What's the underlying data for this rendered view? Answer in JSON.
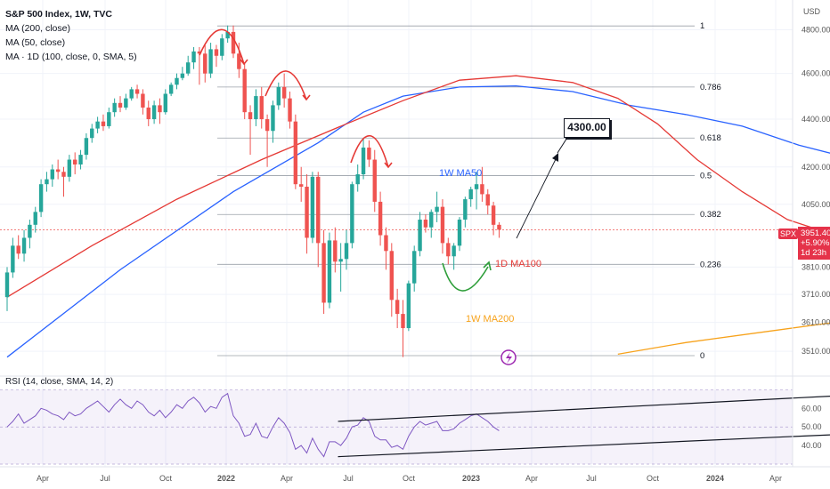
{
  "title": "S&P 500 Index, 1W, TVC",
  "indicators": [
    "MA (200, close)",
    "MA (50, close)",
    "MA · 1D (100, close, 0, SMA, 5)"
  ],
  "rsi_label": "RSI (14, close, SMA, 14, 2)",
  "currency": "USD",
  "symbol_tag": "SPX",
  "last_price": "3951.40",
  "price_change": "+5.90%",
  "countdown": "1d 23h",
  "target_label": "4300.00",
  "colors": {
    "up": "#26a69a",
    "down": "#ef5350",
    "ma50": "#2962ff",
    "ma200": "#f7a21b",
    "ma100d": "#e53935",
    "arrows_red": "#e53935",
    "arrow_green": "#2e9e3a",
    "rsi_line": "#7e57c2"
  },
  "chart_data": {
    "type": "candlestick",
    "y_axis": {
      "unit": "USD",
      "ticks": [
        3510,
        3610,
        3710,
        3810,
        4050,
        4200,
        4400,
        4600,
        4800
      ],
      "tick_labels": [
        "3510.00",
        "3610.00",
        "3710.00",
        "3810.00",
        "4050.00",
        "4200.00",
        "4400.00",
        "4600.00",
        "4800.00"
      ],
      "range": [
        3450,
        4920
      ]
    },
    "x_axis": {
      "tick_labels": [
        "Apr",
        "Jul",
        "Oct",
        "2022",
        "Apr",
        "Jul",
        "Oct",
        "2023",
        "Apr",
        "Jul",
        "Oct",
        "2024",
        "Apr"
      ]
    },
    "fibonacci": [
      {
        "level": "1",
        "price": 4818
      },
      {
        "level": "0.786",
        "price": 4540
      },
      {
        "level": "0.618",
        "price": 4320
      },
      {
        "level": "0.5",
        "price": 4165
      },
      {
        "level": "0.382",
        "price": 4010
      },
      {
        "level": "0.236",
        "price": 3820
      },
      {
        "level": "0",
        "price": 3495
      }
    ],
    "annotations": [
      "1W MA50",
      "1D MA100",
      "1W MA200"
    ],
    "candles": [
      [
        3700,
        3790,
        3650,
        3810
      ],
      [
        3790,
        3890,
        3770,
        3920
      ],
      [
        3890,
        3860,
        3840,
        3930
      ],
      [
        3860,
        3920,
        3830,
        3950
      ],
      [
        3920,
        3970,
        3880,
        3990
      ],
      [
        3970,
        4020,
        3940,
        4040
      ],
      [
        4020,
        4130,
        4000,
        4150
      ],
      [
        4130,
        4150,
        4100,
        4180
      ],
      [
        4150,
        4190,
        4120,
        4210
      ],
      [
        4190,
        4180,
        4150,
        4230
      ],
      [
        4180,
        4160,
        4080,
        4200
      ],
      [
        4160,
        4230,
        4140,
        4250
      ],
      [
        4230,
        4210,
        4170,
        4260
      ],
      [
        4210,
        4250,
        4190,
        4270
      ],
      [
        4250,
        4320,
        4230,
        4340
      ],
      [
        4320,
        4360,
        4300,
        4380
      ],
      [
        4360,
        4390,
        4340,
        4410
      ],
      [
        4390,
        4370,
        4350,
        4420
      ],
      [
        4370,
        4430,
        4360,
        4450
      ],
      [
        4430,
        4470,
        4410,
        4490
      ],
      [
        4470,
        4450,
        4430,
        4500
      ],
      [
        4450,
        4490,
        4440,
        4510
      ],
      [
        4490,
        4530,
        4480,
        4540
      ],
      [
        4530,
        4510,
        4490,
        4550
      ],
      [
        4510,
        4450,
        4420,
        4530
      ],
      [
        4450,
        4400,
        4370,
        4480
      ],
      [
        4400,
        4460,
        4380,
        4480
      ],
      [
        4460,
        4430,
        4380,
        4490
      ],
      [
        4430,
        4510,
        4420,
        4530
      ],
      [
        4510,
        4550,
        4500,
        4560
      ],
      [
        4550,
        4580,
        4530,
        4600
      ],
      [
        4580,
        4600,
        4570,
        4630
      ],
      [
        4600,
        4650,
        4590,
        4680
      ],
      [
        4650,
        4700,
        4620,
        4720
      ],
      [
        4700,
        4690,
        4550,
        4720
      ],
      [
        4690,
        4600,
        4560,
        4730
      ],
      [
        4600,
        4710,
        4580,
        4740
      ],
      [
        4710,
        4680,
        4630,
        4730
      ],
      [
        4680,
        4760,
        4660,
        4780
      ],
      [
        4760,
        4790,
        4740,
        4820
      ],
      [
        4790,
        4690,
        4670,
        4820
      ],
      [
        4690,
        4620,
        4580,
        4740
      ],
      [
        4620,
        4430,
        4400,
        4650
      ],
      [
        4430,
        4400,
        4250,
        4460
      ],
      [
        4400,
        4500,
        4370,
        4530
      ],
      [
        4500,
        4400,
        4360,
        4540
      ],
      [
        4400,
        4350,
        4200,
        4420
      ],
      [
        4350,
        4460,
        4300,
        4480
      ],
      [
        4460,
        4540,
        4440,
        4560
      ],
      [
        4540,
        4490,
        4450,
        4600
      ],
      [
        4490,
        4390,
        4360,
        4520
      ],
      [
        4390,
        4130,
        4110,
        4420
      ],
      [
        4130,
        4120,
        4060,
        4200
      ],
      [
        4120,
        3920,
        3860,
        4170
      ],
      [
        3920,
        4160,
        3900,
        4180
      ],
      [
        4160,
        3900,
        3810,
        4180
      ],
      [
        3900,
        3680,
        3640,
        3950
      ],
      [
        3680,
        3910,
        3660,
        3940
      ],
      [
        3910,
        3830,
        3790,
        3960
      ],
      [
        3830,
        3840,
        3720,
        3900
      ],
      [
        3840,
        3900,
        3800,
        3950
      ],
      [
        3900,
        4130,
        3880,
        4140
      ],
      [
        4130,
        4170,
        4100,
        4210
      ],
      [
        4170,
        4280,
        4150,
        4320
      ],
      [
        4280,
        4230,
        4200,
        4310
      ],
      [
        4230,
        4060,
        4020,
        4270
      ],
      [
        4060,
        3930,
        3890,
        4100
      ],
      [
        3930,
        3870,
        3800,
        3960
      ],
      [
        3870,
        3690,
        3630,
        3900
      ],
      [
        3690,
        3640,
        3590,
        3730
      ],
      [
        3640,
        3590,
        3490,
        3690
      ],
      [
        3590,
        3750,
        3580,
        3760
      ],
      [
        3750,
        3870,
        3720,
        3890
      ],
      [
        3870,
        3990,
        3850,
        4020
      ],
      [
        3990,
        3960,
        3940,
        4010
      ],
      [
        3960,
        4020,
        3920,
        4030
      ],
      [
        4020,
        4040,
        3980,
        4100
      ],
      [
        4040,
        3900,
        3860,
        4070
      ],
      [
        3900,
        3850,
        3820,
        3920
      ],
      [
        3850,
        3890,
        3800,
        3900
      ],
      [
        3890,
        3990,
        3870,
        4000
      ],
      [
        3990,
        4070,
        3960,
        4080
      ],
      [
        4070,
        4110,
        4040,
        4120
      ],
      [
        4110,
        4130,
        4030,
        4180
      ],
      [
        4130,
        4090,
        4060,
        4200
      ],
      [
        4090,
        4045,
        4010,
        4110
      ],
      [
        4045,
        3970,
        3930,
        4060
      ],
      [
        3970,
        3951,
        3920,
        3980
      ]
    ],
    "ma50_1w": [
      [
        0,
        3490
      ],
      [
        20,
        3800
      ],
      [
        40,
        4100
      ],
      [
        55,
        4300
      ],
      [
        63,
        4430
      ],
      [
        70,
        4500
      ],
      [
        80,
        4540
      ],
      [
        90,
        4545
      ],
      [
        100,
        4520
      ],
      [
        110,
        4460
      ],
      [
        120,
        4420
      ],
      [
        130,
        4370
      ],
      [
        140,
        4290
      ],
      [
        150,
        4230
      ],
      [
        160,
        4170
      ],
      [
        168,
        4110
      ],
      [
        176,
        4080
      ],
      [
        185,
        4040
      ],
      [
        190,
        4010
      ]
    ],
    "ma200_1w": [
      [
        108,
        3500
      ],
      [
        120,
        3540
      ],
      [
        135,
        3580
      ],
      [
        150,
        3620
      ],
      [
        165,
        3660
      ],
      [
        180,
        3700
      ],
      [
        190,
        3730
      ]
    ],
    "ma100_1d": [
      [
        0,
        3700
      ],
      [
        15,
        3890
      ],
      [
        30,
        4070
      ],
      [
        45,
        4230
      ],
      [
        60,
        4380
      ],
      [
        70,
        4480
      ],
      [
        80,
        4570
      ],
      [
        90,
        4590
      ],
      [
        100,
        4560
      ],
      [
        108,
        4490
      ],
      [
        115,
        4380
      ],
      [
        122,
        4230
      ],
      [
        130,
        4100
      ],
      [
        138,
        3990
      ],
      [
        145,
        3940
      ],
      [
        150,
        3910
      ],
      [
        158,
        3900
      ],
      [
        165,
        3960
      ],
      [
        172,
        3930
      ],
      [
        180,
        3880
      ],
      [
        186,
        3890
      ]
    ],
    "rsi": {
      "range": [
        30,
        75
      ],
      "ticks": [
        40,
        50,
        60
      ],
      "tick_labels": [
        "40.00",
        "50.00",
        "60.00"
      ],
      "values": [
        50,
        53,
        57,
        52,
        54,
        56,
        60,
        59,
        57,
        56,
        54,
        58,
        56,
        57,
        60,
        62,
        64,
        61,
        58,
        62,
        65,
        62,
        60,
        64,
        62,
        58,
        56,
        59,
        55,
        58,
        62,
        60,
        64,
        66,
        63,
        58,
        61,
        60,
        66,
        68,
        56,
        52,
        45,
        46,
        52,
        45,
        44,
        50,
        55,
        52,
        47,
        38,
        40,
        36,
        44,
        38,
        34,
        42,
        42,
        40,
        44,
        50,
        51,
        55,
        53,
        45,
        43,
        43,
        39,
        40,
        38,
        45,
        50,
        53,
        51,
        52,
        53,
        48,
        48,
        49,
        52,
        54,
        56,
        57,
        55,
        53,
        50,
        48
      ],
      "channel_upper": [
        [
          53,
          53
        ],
        [
          150,
          68
        ]
      ],
      "channel_lower": [
        [
          53,
          34
        ],
        [
          150,
          47
        ]
      ]
    }
  }
}
